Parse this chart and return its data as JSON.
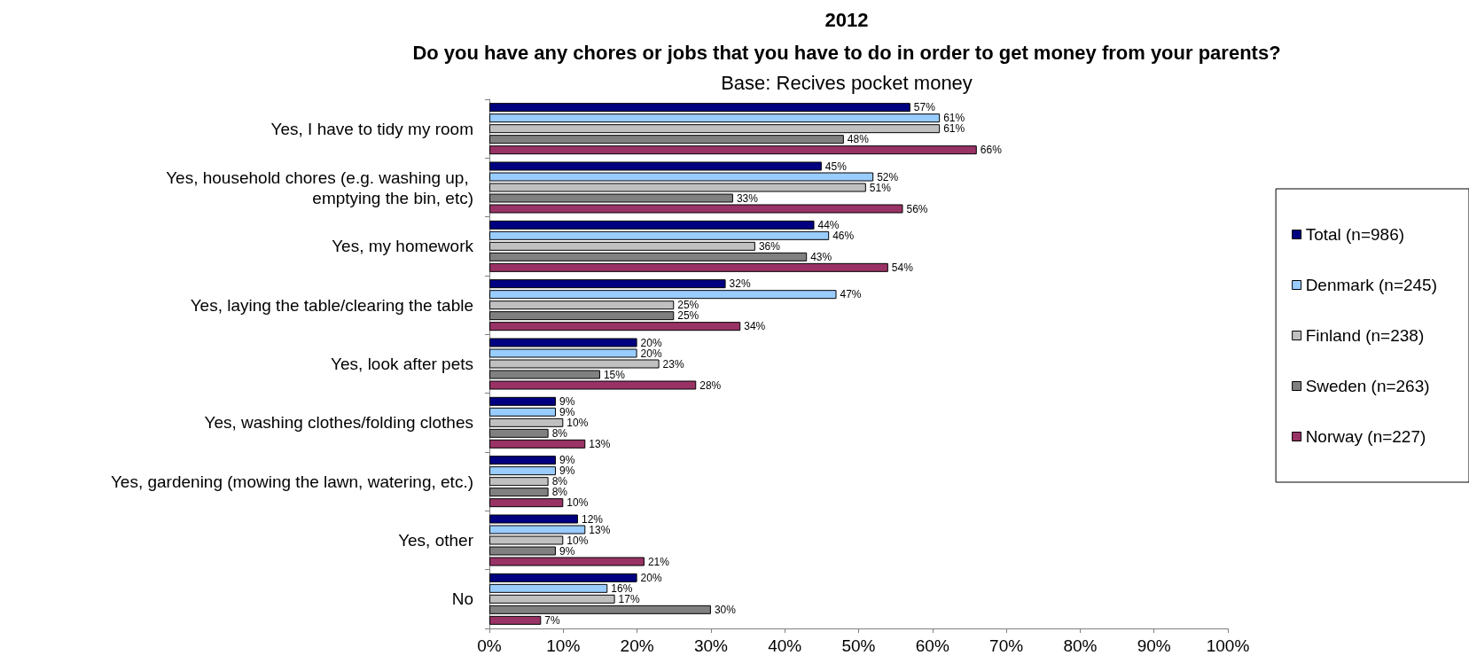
{
  "chart_data": {
    "type": "bar",
    "orientation": "horizontal",
    "title": "2012",
    "subtitle": "Do you have any chores or jobs that you have to do in order to get money from your parents?",
    "annotations": [
      "Base: Recives pocket money"
    ],
    "categories": [
      "Yes, I have to tidy my room",
      "Yes, household chores (e.g. washing up, emptying the bin, etc)",
      "Yes, my homework",
      "Yes, laying the table/clearing the table",
      "Yes, look after pets",
      "Yes, washing clothes/folding clothes",
      "Yes, gardening (mowing the lawn, watering, etc.)",
      "Yes, other",
      "No"
    ],
    "series": [
      {
        "name": "Total (n=986)",
        "color": "#000080",
        "values": [
          57,
          45,
          44,
          32,
          20,
          9,
          9,
          12,
          20
        ],
        "value_labels": [
          "57%",
          "45%",
          "44%",
          "32%",
          "20%",
          "9%",
          "9%",
          "12%",
          "20%"
        ]
      },
      {
        "name": "Denmark (n=245)",
        "color": "#99ccff",
        "values": [
          61,
          52,
          46,
          47,
          20,
          9,
          9,
          13,
          16
        ],
        "value_labels": [
          "61%",
          "52%",
          "46%",
          "47%",
          "20%",
          "9%",
          "9%",
          "13%",
          "16%"
        ]
      },
      {
        "name": "Finland (n=238)",
        "color": "#c0c0c0",
        "values": [
          61,
          51,
          36,
          25,
          23,
          10,
          8,
          10,
          17
        ],
        "value_labels": [
          "61%",
          "51%",
          "36%",
          "25%",
          "23%",
          "10%",
          "8%",
          "10%",
          "17%"
        ]
      },
      {
        "name": "Sweden (n=263)",
        "color": "#808080",
        "values": [
          48,
          33,
          43,
          25,
          15,
          8,
          8,
          9,
          30
        ],
        "value_labels": [
          "48%",
          "33%",
          "43%",
          "25%",
          "15%",
          "8%",
          "8%",
          "9%",
          "30%"
        ]
      },
      {
        "name": "Norway (n=227)",
        "color": "#993366",
        "values": [
          66,
          56,
          54,
          34,
          28,
          13,
          10,
          21,
          7
        ],
        "value_labels": [
          "66%",
          "56%",
          "54%",
          "34%",
          "28%",
          "13%",
          "10%",
          "21%",
          "7%"
        ]
      }
    ],
    "xlim": [
      0,
      100
    ],
    "xticks": [
      {
        "value": 0,
        "label": "0%"
      },
      {
        "value": 10,
        "label": "10%"
      },
      {
        "value": 20,
        "label": "20%"
      },
      {
        "value": 30,
        "label": "30%"
      },
      {
        "value": 40,
        "label": "40%"
      },
      {
        "value": 50,
        "label": "50%"
      },
      {
        "value": 60,
        "label": "60%"
      },
      {
        "value": 70,
        "label": "70%"
      },
      {
        "value": 80,
        "label": "80%"
      },
      {
        "value": 90,
        "label": "90%"
      },
      {
        "value": 100,
        "label": "100%"
      }
    ],
    "grid": false,
    "legend": "right"
  }
}
